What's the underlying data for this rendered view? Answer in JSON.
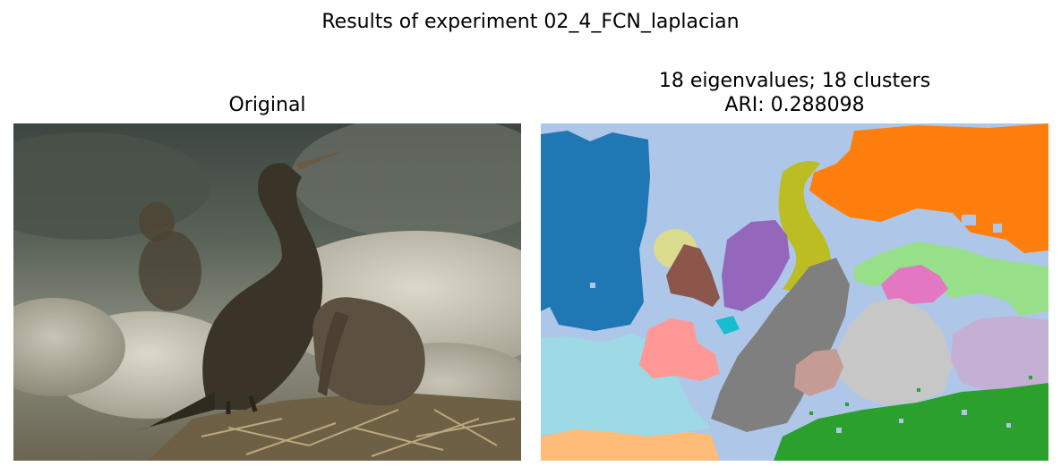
{
  "figure": {
    "suptitle": "Results of experiment 02_4_FCN_laplacian"
  },
  "left_panel": {
    "title": "Original"
  },
  "right_panel": {
    "title_line1": "18 eigenvalues; 18 clusters",
    "title_line2": "ARI: 0.288098"
  },
  "segmentation_colors": {
    "background": "#aec7e8",
    "blue": "#1f77b4",
    "orange": "#ff7f0e",
    "olive": "#bcbd22",
    "purple": "#9467bd",
    "brown": "#8c564b",
    "khaki": "#dbdb8d",
    "light_green": "#98df8a",
    "pink": "#e377c2",
    "gray": "#7f7f7f",
    "light_gray": "#c7c7c7",
    "lilac": "#c5b0d5",
    "salmon": "#ff9896",
    "light_cyan": "#9edae5",
    "cyan": "#17becf",
    "dusty_rose": "#c49c94",
    "peach": "#ffbb78",
    "green": "#2ca02c"
  }
}
